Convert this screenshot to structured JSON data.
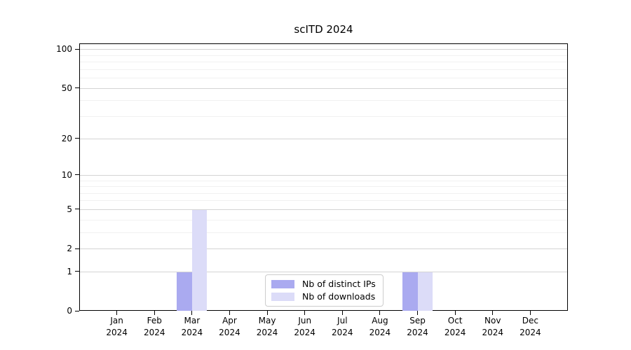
{
  "title": "scITD 2024",
  "colors": {
    "distinct_ips": "#aaaaf0",
    "downloads": "#dcdcf8",
    "axis": "#000000",
    "grid_major": "#d4d4d4",
    "grid_minor": "#f1f1f1",
    "background": "#ffffff"
  },
  "legend": {
    "entries": [
      {
        "label": "Nb of distinct IPs",
        "color_key": "distinct_ips"
      },
      {
        "label": "Nb of downloads",
        "color_key": "downloads"
      }
    ]
  },
  "chart_data": {
    "type": "bar",
    "title": "scITD 2024",
    "categories": [
      "Jan 2024",
      "Feb 2024",
      "Mar 2024",
      "Apr 2024",
      "May 2024",
      "Jun 2024",
      "Jul 2024",
      "Aug 2024",
      "Sep 2024",
      "Oct 2024",
      "Nov 2024",
      "Dec 2024"
    ],
    "series": [
      {
        "name": "Nb of distinct IPs",
        "color_key": "distinct_ips",
        "values": [
          0,
          0,
          1,
          0,
          0,
          0,
          0,
          0,
          1,
          0,
          0,
          0
        ]
      },
      {
        "name": "Nb of downloads",
        "color_key": "downloads",
        "values": [
          0,
          0,
          5,
          0,
          0,
          0,
          0,
          0,
          1,
          0,
          0,
          0
        ]
      }
    ],
    "xlabel": "",
    "ylabel": "",
    "y_ticks": [
      0,
      1,
      2,
      5,
      10,
      20,
      50,
      100
    ],
    "y_gridlines_major": [
      1,
      2,
      5,
      10,
      20,
      50,
      100
    ],
    "y_gridlines_minor": [
      3,
      4,
      6,
      7,
      8,
      9,
      30,
      40,
      60,
      70,
      80,
      90
    ],
    "y_scale": "log1p",
    "ylim": [
      0,
      111
    ],
    "grid": "horizontal",
    "legend_position": "lower center"
  }
}
